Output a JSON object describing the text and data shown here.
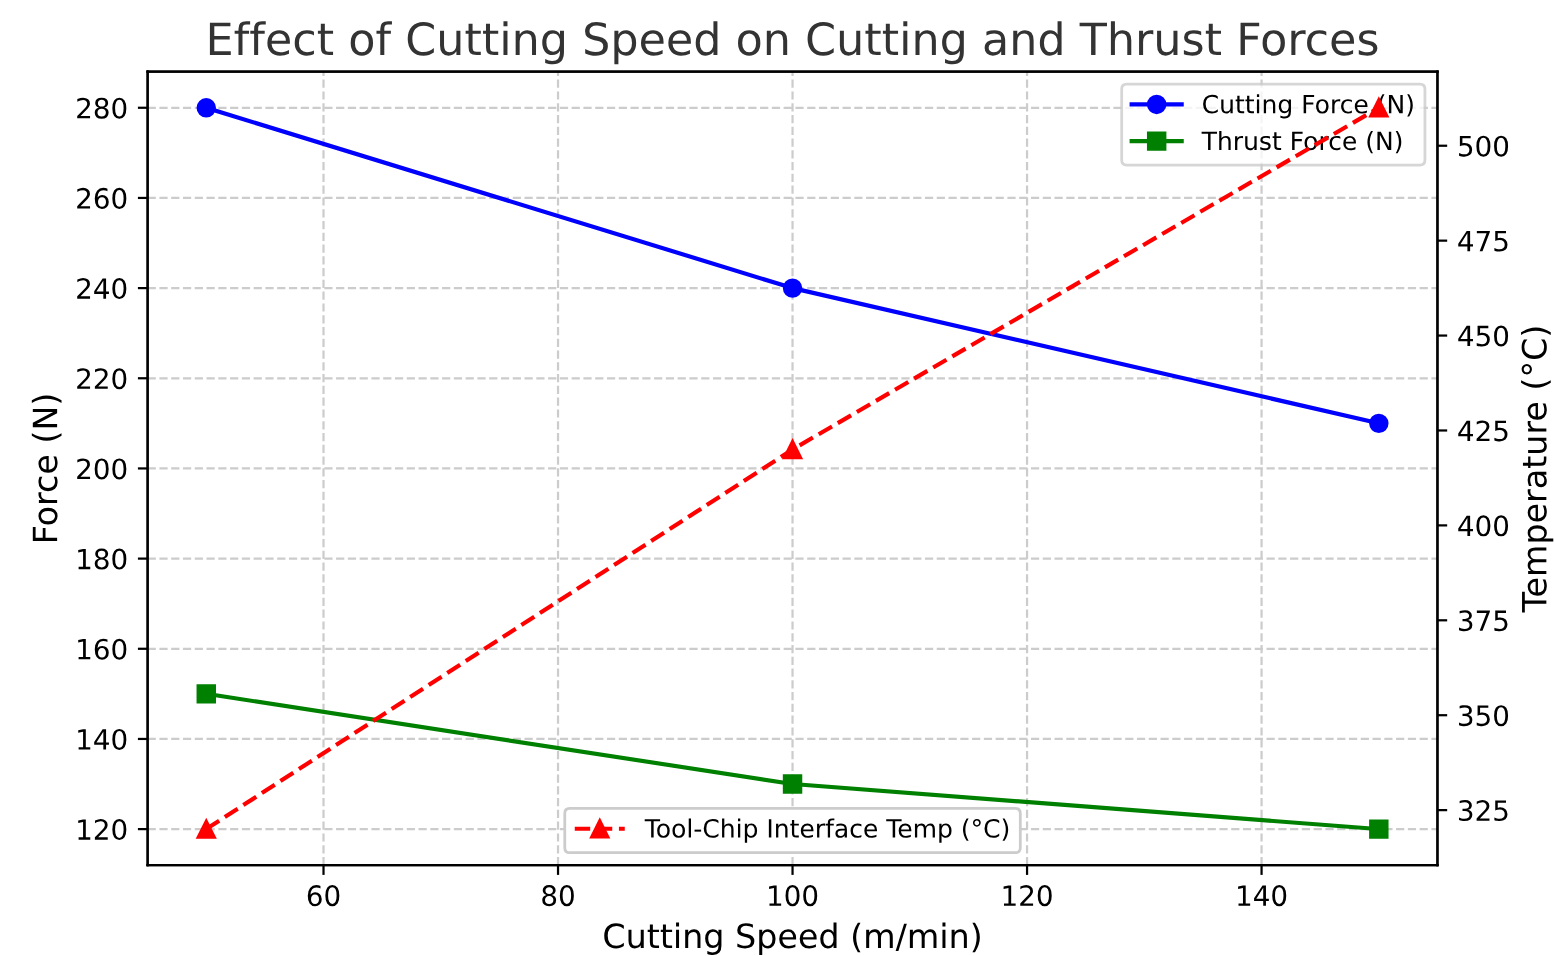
{
  "chart_data": {
    "type": "line",
    "title": "Effect of Cutting Speed on Cutting and Thrust Forces",
    "xlabel": "Cutting Speed (m/min)",
    "ylabel": "Force (N)",
    "y2label": "Temperature (°C)",
    "x": [
      50,
      100,
      150
    ],
    "series": [
      {
        "name": "Cutting Force (N)",
        "color": "#0000ff",
        "values": [
          280,
          240,
          210
        ],
        "marker": "circle",
        "line_style": "solid"
      },
      {
        "name": "Thrust Force (N)",
        "color": "#008000",
        "values": [
          150,
          130,
          120
        ],
        "marker": "square",
        "line_style": "solid"
      },
      {
        "name": "Tool-Chip Interface Temp (°C)",
        "color": "#ff0000",
        "values": [
          320,
          420,
          510
        ],
        "marker": "triangle",
        "line_style": "dashed",
        "axis": "y2"
      }
    ],
    "xlim": [
      45,
      155
    ],
    "xticks": [
      60,
      80,
      100,
      120,
      140
    ],
    "ylim": [
      112,
      288
    ],
    "yticks": [
      120,
      140,
      160,
      180,
      200,
      220,
      240,
      260,
      280
    ],
    "y2lim": [
      310.5,
      519.5
    ],
    "y2ticks": [
      325,
      350,
      375,
      400,
      425,
      450,
      475,
      500
    ],
    "grid": true,
    "legend": [
      "top right",
      "bottom"
    ]
  }
}
